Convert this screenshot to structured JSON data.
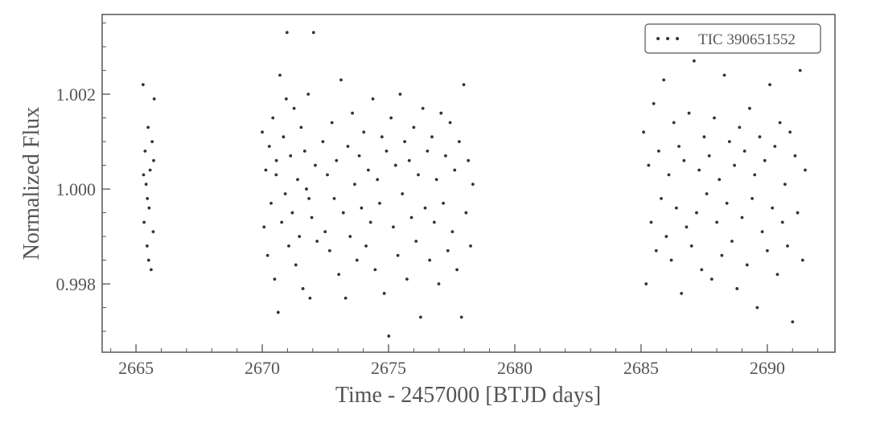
{
  "chart_data": {
    "type": "scatter",
    "xlabel": "Time - 2457000 [BTJD days]",
    "ylabel": "Normalized Flux",
    "xlim": [
      2663.66,
      2692.68
    ],
    "ylim": [
      0.99656,
      1.00368
    ],
    "xticks": [
      2665,
      2670,
      2675,
      2680,
      2685,
      2690
    ],
    "xminorticks": [
      2664,
      2666,
      2667,
      2668,
      2669,
      2671,
      2672,
      2673,
      2674,
      2676,
      2677,
      2678,
      2679,
      2681,
      2682,
      2683,
      2684,
      2686,
      2687,
      2688,
      2689,
      2691,
      2692
    ],
    "yticks": [
      {
        "value": 0.998,
        "label": "0.998"
      },
      {
        "value": 1.0,
        "label": "1.000"
      },
      {
        "value": 1.002,
        "label": "1.002"
      }
    ],
    "yminorticks": [
      0.997,
      0.9975,
      0.9985,
      0.999,
      0.9995,
      1.0005,
      1.001,
      1.0015,
      1.0025,
      1.003,
      1.0035
    ],
    "legend": "upper right",
    "series": [
      {
        "name": "TIC 390651552",
        "color": "#333333",
        "x": [
          2665.28,
          2665.32,
          2665.36,
          2665.4,
          2665.44,
          2665.48,
          2665.52,
          2665.56,
          2665.6,
          2665.64,
          2665.68,
          2665.72,
          2665.3,
          2665.5,
          2665.7,
          2665.45,
          2670.0,
          2670.07,
          2670.14,
          2670.21,
          2670.28,
          2670.35,
          2670.42,
          2670.49,
          2670.56,
          2670.63,
          2670.7,
          2670.77,
          2670.84,
          2670.91,
          2670.98,
          2671.05,
          2671.12,
          2671.19,
          2671.26,
          2671.33,
          2671.4,
          2671.47,
          2671.54,
          2671.61,
          2671.68,
          2671.75,
          2671.82,
          2671.89,
          2671.96,
          2672.03,
          2672.1,
          2672.17,
          2670.95,
          2671.85,
          2670.55,
          2672.4,
          2672.49,
          2672.58,
          2672.67,
          2672.76,
          2672.85,
          2672.94,
          2673.03,
          2673.12,
          2673.21,
          2673.3,
          2673.39,
          2673.48,
          2673.57,
          2673.66,
          2673.75,
          2673.84,
          2673.93,
          2674.02,
          2674.11,
          2674.2,
          2674.29,
          2674.38,
          2674.47,
          2674.56,
          2674.65,
          2674.74,
          2674.83,
          2674.92,
          2675.01,
          2675.1,
          2675.19,
          2675.28,
          2675.37,
          2675.46,
          2675.55,
          2675.64,
          2675.73,
          2675.82,
          2675.91,
          2676.0,
          2676.09,
          2676.18,
          2676.27,
          2676.36,
          2676.45,
          2676.54,
          2676.63,
          2676.72,
          2676.81,
          2676.9,
          2676.99,
          2677.08,
          2677.17,
          2677.26,
          2677.35,
          2677.44,
          2677.53,
          2677.62,
          2677.71,
          2677.8,
          2677.89,
          2677.98,
          2678.07,
          2678.16,
          2678.25,
          2678.34,
          2685.1,
          2685.2,
          2685.3,
          2685.4,
          2685.5,
          2685.6,
          2685.7,
          2685.8,
          2685.9,
          2686.0,
          2686.1,
          2686.2,
          2686.3,
          2686.4,
          2686.5,
          2686.6,
          2686.7,
          2686.8,
          2686.9,
          2687.0,
          2687.1,
          2687.2,
          2687.3,
          2687.4,
          2687.5,
          2687.6,
          2687.7,
          2687.8,
          2687.9,
          2688.0,
          2688.1,
          2688.2,
          2688.3,
          2688.4,
          2688.5,
          2688.6,
          2688.7,
          2688.8,
          2688.9,
          2689.0,
          2689.1,
          2689.2,
          2689.3,
          2689.4,
          2689.5,
          2689.6,
          2689.7,
          2689.8,
          2689.9,
          2690.0,
          2690.1,
          2690.2,
          2690.3,
          2690.4,
          2690.5,
          2690.6,
          2690.7,
          2690.8,
          2690.9,
          2691.0,
          2691.1,
          2691.2,
          2691.3,
          2691.4,
          2691.5
        ],
        "y": [
          1.0022,
          0.9993,
          1.0008,
          1.0001,
          0.9988,
          1.0013,
          0.9996,
          1.0004,
          0.9983,
          1.001,
          0.9991,
          1.0019,
          1.0003,
          0.9985,
          1.0006,
          0.9998,
          1.0012,
          0.9992,
          1.0004,
          0.9986,
          1.0009,
          0.9997,
          1.0015,
          0.9981,
          1.0006,
          0.9974,
          1.0024,
          0.9993,
          1.0011,
          0.9999,
          1.0033,
          0.9988,
          1.0007,
          0.9995,
          1.0017,
          0.9984,
          1.0002,
          0.999,
          1.0013,
          0.9979,
          1.0008,
          1.0,
          1.002,
          0.9977,
          0.9994,
          1.0033,
          1.0005,
          0.9989,
          1.0019,
          0.9998,
          1.0003,
          1.001,
          0.9991,
          1.0003,
          0.9987,
          1.0014,
          0.9998,
          1.0006,
          0.9982,
          1.0023,
          0.9995,
          0.9977,
          1.0009,
          0.999,
          1.0016,
          1.0001,
          0.9985,
          1.0007,
          0.9996,
          1.0012,
          0.9988,
          1.0004,
          0.9993,
          1.0019,
          0.9983,
          1.0002,
          0.9997,
          1.0011,
          0.9978,
          1.0008,
          0.9969,
          1.0015,
          0.9992,
          1.0005,
          0.9986,
          1.002,
          0.9999,
          1.001,
          0.9981,
          1.0006,
          0.9994,
          1.0013,
          0.9989,
          1.0003,
          0.9973,
          1.0017,
          0.9996,
          1.0008,
          0.9985,
          1.0011,
          0.9993,
          1.0002,
          0.998,
          1.0016,
          0.9997,
          1.0007,
          0.9987,
          1.0014,
          0.9991,
          1.0004,
          0.9983,
          1.001,
          0.9973,
          1.0022,
          0.9995,
          1.0006,
          0.9988,
          1.0001,
          1.0012,
          0.998,
          1.0005,
          0.9993,
          1.0018,
          0.9987,
          1.0008,
          0.9998,
          1.0023,
          0.999,
          1.0003,
          0.9985,
          1.0014,
          0.9996,
          1.0009,
          0.9978,
          1.0006,
          0.9992,
          1.0016,
          0.9988,
          1.0027,
          0.9995,
          1.0004,
          0.9983,
          1.0011,
          0.9999,
          1.0007,
          0.9981,
          1.0015,
          0.9993,
          1.0002,
          0.9986,
          1.0024,
          0.9997,
          1.001,
          0.9989,
          1.0005,
          0.9979,
          1.0013,
          0.9994,
          1.0008,
          0.9984,
          1.0017,
          0.9998,
          1.0003,
          0.9975,
          1.0011,
          0.9991,
          1.0006,
          0.9987,
          1.0022,
          0.9996,
          1.0009,
          0.9982,
          1.0014,
          0.9993,
          1.0001,
          0.9988,
          1.0012,
          0.9972,
          1.0007,
          0.9995,
          1.0025,
          0.9985,
          1.0004
        ]
      }
    ]
  }
}
